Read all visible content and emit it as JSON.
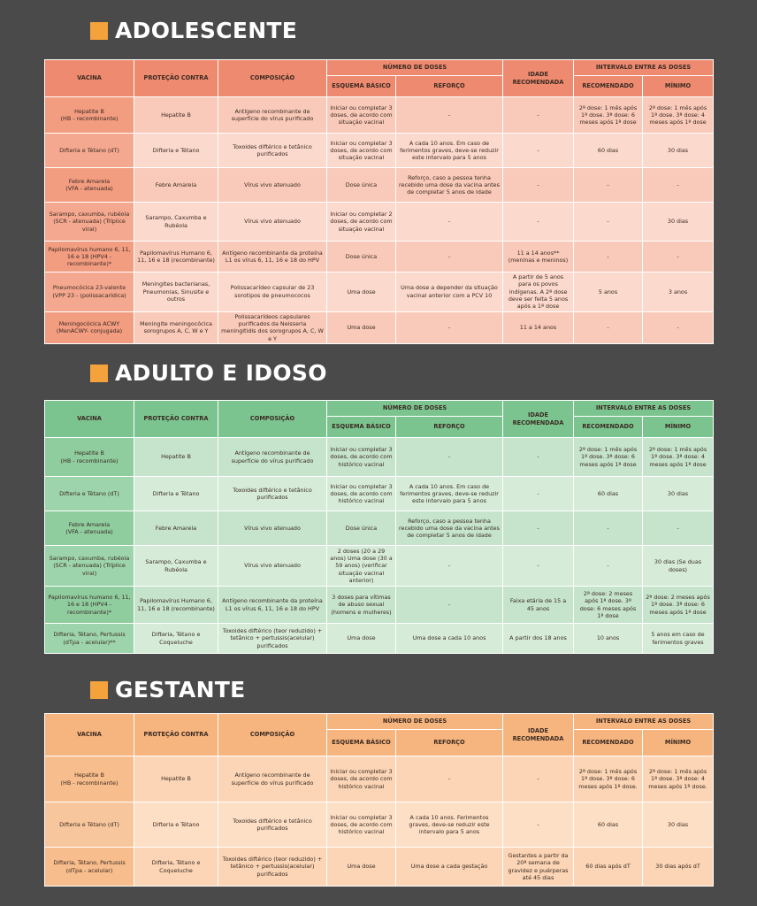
{
  "sections": {
    "adolescente": {
      "title": "ADOLESCENTE"
    },
    "adulto": {
      "title": "ADULTO E IDOSO"
    },
    "gestante": {
      "title": "GESTANTE"
    }
  },
  "headers": {
    "vacina": "VACINA",
    "protecao": "PROTEÇÃO CONTRA",
    "composicao": "COMPOSIÇÃO",
    "numero_doses": "NÚMERO DE DOSES",
    "esquema": "ESQUEMA BÁSICO",
    "reforco": "REFORÇO",
    "idade": "IDADE RECOMENDADA",
    "intervalo": "INTERVALO ENTRE AS DOSES",
    "recomendado": "RECOMENDADO",
    "minimo": "MÍNIMO"
  },
  "adolescente_rows": [
    [
      "Hepatite B\n(HB - recombinante)",
      "Hepatite B",
      "Antígeno recombinante de superfície do vírus purificado",
      "Iniciar ou completar 3 doses, de acordo com situação vacinal",
      "-",
      "-",
      "2ª dose: 1 mês após 1ª dose. 3ª dose: 6 meses após 1ª dose",
      "2ª dose: 1 mês após 1ª dose. 3ª dose: 4 meses após 1ª dose"
    ],
    [
      "Difteria e Tétano (dT)",
      "Difteria e Tétano",
      "Toxoides diftérico e tetânico purificados",
      "Iniciar ou completar 3 doses, de acordo com situação vacinal",
      "A cada 10 anos. Em caso de ferimentos graves, deve-se reduzir este intervalo para 5 anos",
      "-",
      "60 dias",
      "30 dias"
    ],
    [
      "Febre Amarela\n(VFA - atenuada)",
      "Febre Amarela",
      "Vírus vivo atenuado",
      "Dose única",
      "Reforço, caso a pessoa tenha recebido uma dose da vacina antes de completar 5 anos de idade",
      "-",
      "-",
      "-"
    ],
    [
      "Sarampo, caxumba, rubéola (SCR - atenuada) (Tríplice viral)",
      "Sarampo, Caxumba e Rubéola",
      "Vírus vivo atenuado",
      "Iniciar ou completar 2 doses, de acordo com situação vacinal",
      "-",
      "-",
      "-",
      "30 dias"
    ],
    [
      "Papilomavírus humano 6, 11, 16 e 18 (HPV4 -recombinante)*",
      "Papilomavírus Humano 6, 11, 16 e 18 (recombinante)",
      "Antígeno recombinante da proteína L1 os vírus 6, 11, 16 e 18 do HPV",
      "Dose única",
      "-",
      "11 a 14 anos**\n(meninas e meninos)",
      "-",
      "-"
    ],
    [
      "Pneumocócica 23-valente (VPP 23 - (polissacarídica)",
      "Meningites bacterianas, Pneumonias, Sinusite e outros",
      "Polissacarídeo capsular de 23 sorotipos de pneumococos",
      "Uma dose",
      "Uma dose a depender da situação vacinal anterior com a PCV 10",
      "A partir de 5 anos para os povos indígenas. A 2ª dose deve ser feita 5 anos após a 1ª dose",
      "5 anos",
      "3 anos"
    ],
    [
      "Meningocócica ACWY (MenACWY- conjugada)",
      "Meningite meningocócica sorogrupos A, C, W e Y",
      "Polissacarídeos capsulares purificados da Neisseria meningitidis dos sorogrupos A, C, W e Y",
      "Uma dose",
      "-",
      "11 a 14 anos",
      "-",
      "-"
    ]
  ],
  "adulto_rows": [
    [
      "Hepatite B\n(HB - recombinante)",
      "Hepatite B",
      "Antígeno recombinante de superfície do vírus purificado",
      "Iniciar ou completar 3 doses, de acordo com histórico vacinal",
      "-",
      "-",
      "2ª dose: 1 mês após 1ª dose. 3ª dose: 6 meses após 1ª dose",
      "2ª dose: 1 mês após 1ª dose. 3ª dose: 4 meses após 1ª dose"
    ],
    [
      "Difteria e Tétano (dT)",
      "Difteria e Tétano",
      "Toxoides diftérico e tetânico purificados",
      "Iniciar ou completar 3 doses, de acordo com histórico vacinal",
      "A cada 10 anos. Em caso de ferimentos graves, deve-se reduzir este intervalo para 5 anos",
      "-",
      "60 dias",
      "30 dias"
    ],
    [
      "Febre Amarela\n(VFA - atenuada)",
      "Febre Amarela",
      "Vírus vivo atenuado",
      "Dose única",
      "Reforço, caso a pessoa tenha recebido uma dose da vacina antes de completar 5 anos de idade",
      "-",
      "-",
      "-"
    ],
    [
      "Sarampo, caxumba, rubéola (SCR - atenuada) (Tríplice viral)",
      "Sarampo, Caxumba e Rubéola",
      "Vírus vivo atenuado",
      "2 doses (20 a 29 anos) Uma dose (30 a 59 anos) (verificar situação vacinal anterior)",
      "-",
      "-",
      "-",
      "30 dias (Se duas doses)"
    ],
    [
      "Papilomavírus humano 6, 11, 16 e 18 (HPV4 - recombinante)*",
      "Papilomavírus Humano 6, 11, 16 e 18 (recombinante)",
      "Antígeno recombinante da proteína L1 os vírus 6, 11, 16 e 18 do HPV",
      "3 doses para vítimas de abuso sexual (homens e mulheres)",
      "-",
      "Faixa etária de 15 a 45 anos",
      "2ª dose: 2 meses após 1ª dose. 3ª dose: 6 meses após 1ª dose",
      "2ª dose: 2 meses após 1ª dose. 3ª dose: 6 meses após 1ª dose"
    ],
    [
      "Difteria, Tétano, Pertussis (dTpa - acelular)**",
      "Difteria, Tétano e Coqueluche",
      "Toxoides diftérico (teor reduzido) + tetânico + pertussis(acelular) purificados",
      "Uma dose",
      "Uma dose a cada 10 anos",
      "A partir dos 18 anos",
      "10 anos",
      "5 anos em caso de ferimentos graves"
    ]
  ],
  "gestante_rows": [
    [
      "Hepatite B\n(HB - recombinante)",
      "Hepatite B",
      "Antígeno recombinante de superfície do vírus purificado",
      "Iniciar ou completar 3 doses, de acordo com histórico vacinal",
      "-",
      "-",
      "2ª dose: 1 mês após 1ª dose. 3ª dose: 6 meses após 1ª dose.",
      "2ª dose: 1 mês após 1ª dose. 3ª dose: 4 meses após 1ª dose."
    ],
    [
      "Difteria e Tétano (dT)",
      "Difteria e Tétano",
      "Toxoides diftérico e tetânico purificados",
      "Iniciar ou completar 3 doses, de acordo com histórico vacinal",
      "A cada 10 anos. Ferimentos graves, deve-se reduzir este intervalo para 5 anos",
      "-",
      "60 dias",
      "30 dias"
    ],
    [
      "Difteria, Tétano, Pertussis (dTpa - acelular)",
      "Difteria, Tétano e Coqueluche",
      "Toxoides diftérico (teor reduzido) + tetânico + pertussis(acelular) purificados",
      "Uma dose",
      "Uma dose a cada gestação",
      "Gestantes a partir da 20ª semana de gravidez e puérperas até 45 dias",
      "60 dias após dT",
      "30 dias após dT"
    ]
  ]
}
